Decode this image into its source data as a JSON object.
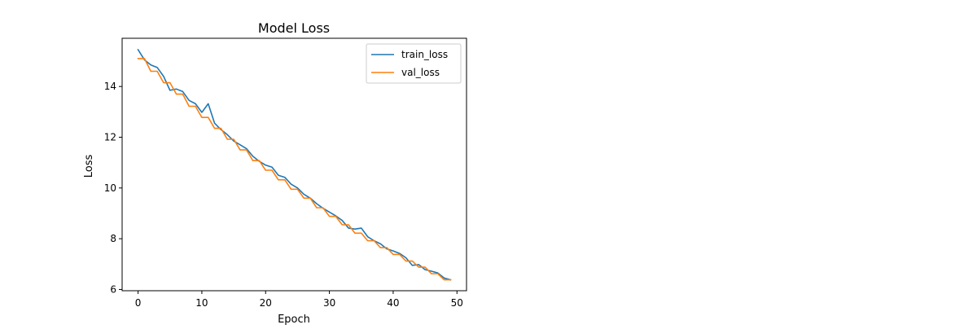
{
  "chart_data": {
    "type": "line",
    "title": "Model Loss",
    "xlabel": "Epoch",
    "ylabel": "Loss",
    "xlim": [
      -2.5,
      51.5
    ],
    "ylim": [
      5.95,
      15.9
    ],
    "xticks": [
      0,
      10,
      20,
      30,
      40,
      50
    ],
    "yticks": [
      6,
      8,
      10,
      12,
      14
    ],
    "legend_position": "top-right",
    "grid": false,
    "x": [
      0,
      1,
      2,
      3,
      4,
      5,
      6,
      7,
      8,
      9,
      10,
      11,
      12,
      13,
      14,
      15,
      16,
      17,
      18,
      19,
      20,
      21,
      22,
      23,
      24,
      25,
      26,
      27,
      28,
      29,
      30,
      31,
      32,
      33,
      34,
      35,
      36,
      37,
      38,
      39,
      40,
      41,
      42,
      43,
      44,
      45,
      46,
      47,
      48,
      49
    ],
    "series": [
      {
        "name": "train_loss",
        "color": "#1f77b4",
        "values": [
          15.45,
          15.05,
          14.85,
          14.75,
          14.4,
          13.85,
          13.9,
          13.8,
          13.45,
          13.32,
          12.98,
          13.32,
          12.55,
          12.3,
          12.1,
          11.85,
          11.7,
          11.55,
          11.25,
          11.05,
          10.9,
          10.82,
          10.5,
          10.42,
          10.15,
          10.0,
          9.75,
          9.6,
          9.38,
          9.2,
          9.05,
          8.9,
          8.72,
          8.42,
          8.38,
          8.42,
          8.08,
          7.92,
          7.8,
          7.6,
          7.52,
          7.42,
          7.25,
          6.95,
          6.98,
          6.78,
          6.72,
          6.65,
          6.45,
          6.38
        ]
      },
      {
        "name": "val_loss",
        "color": "#ff7f0e",
        "values": [
          15.1,
          15.1,
          14.6,
          14.6,
          14.15,
          14.15,
          13.7,
          13.7,
          13.22,
          13.22,
          12.78,
          12.78,
          12.35,
          12.35,
          11.92,
          11.92,
          11.5,
          11.5,
          11.08,
          11.08,
          10.7,
          10.7,
          10.32,
          10.32,
          9.95,
          9.95,
          9.6,
          9.6,
          9.22,
          9.22,
          8.88,
          8.88,
          8.55,
          8.55,
          8.22,
          8.22,
          7.92,
          7.92,
          7.65,
          7.65,
          7.38,
          7.38,
          7.12,
          7.12,
          6.88,
          6.88,
          6.62,
          6.62,
          6.38,
          6.38
        ]
      }
    ]
  }
}
